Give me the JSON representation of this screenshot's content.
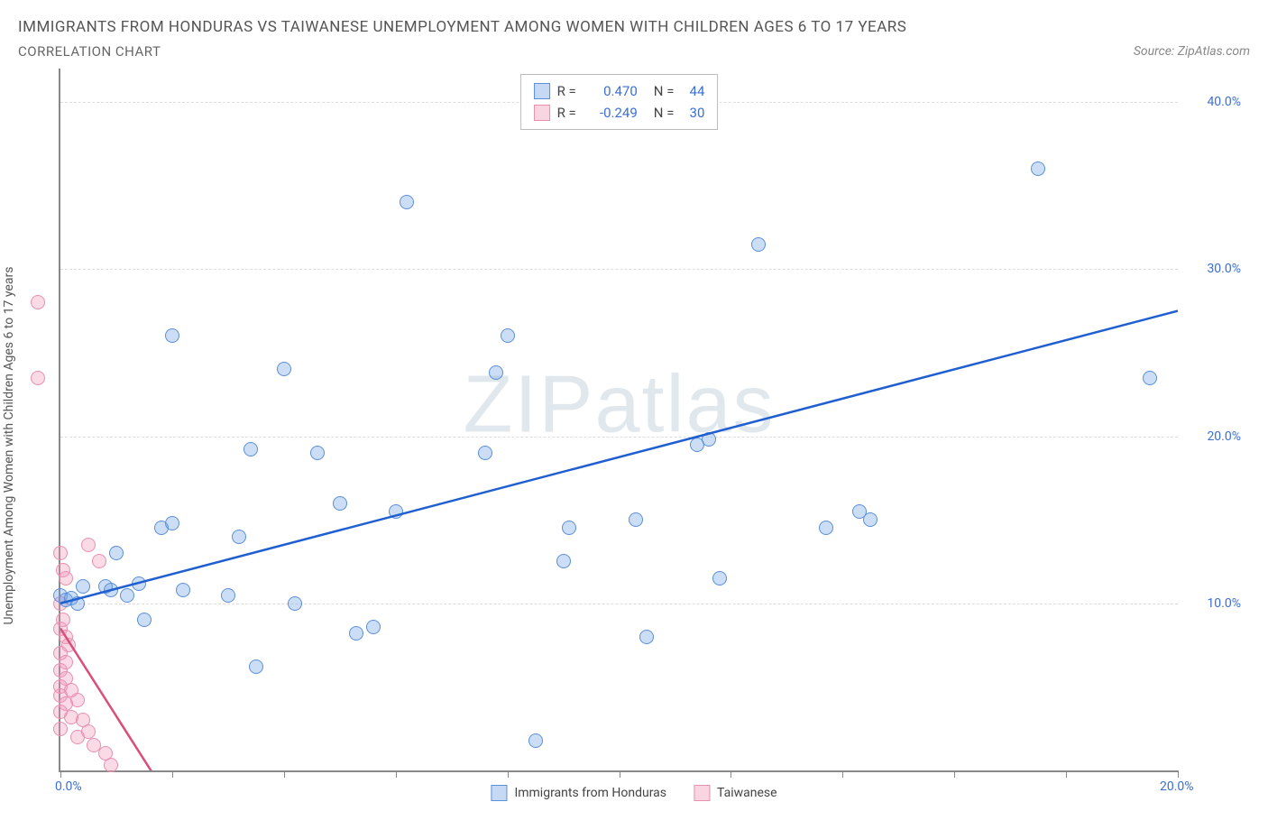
{
  "title": "IMMIGRANTS FROM HONDURAS VS TAIWANESE UNEMPLOYMENT AMONG WOMEN WITH CHILDREN AGES 6 TO 17 YEARS",
  "subtitle": "CORRELATION CHART",
  "source": "Source: ZipAtlas.com",
  "y_axis_label": "Unemployment Among Women with Children Ages 6 to 17 years",
  "watermark_a": "ZIP",
  "watermark_b": "atlas",
  "legend_top": {
    "series": [
      {
        "swatch": "blue",
        "r_label": "R =",
        "r": "0.470",
        "n_label": "N =",
        "n": "44"
      },
      {
        "swatch": "pink",
        "r_label": "R =",
        "r": "-0.249",
        "n_label": "N =",
        "n": "30"
      }
    ]
  },
  "legend_bottom": [
    {
      "swatch": "blue",
      "label": "Immigrants from Honduras"
    },
    {
      "swatch": "pink",
      "label": "Taiwanese"
    }
  ],
  "chart": {
    "type": "scatter",
    "xlim": [
      0,
      20
    ],
    "ylim": [
      0,
      42
    ],
    "x_ticks_pct": [
      0,
      10,
      20,
      30,
      40,
      50,
      60,
      70,
      80,
      90,
      100
    ],
    "y_gridlines": [
      10,
      20,
      30,
      40
    ],
    "y_tick_labels": [
      "10.0%",
      "20.0%",
      "30.0%",
      "40.0%"
    ],
    "x_origin_label": "0.0%",
    "x_max_label": "20.0%",
    "background_color": "#ffffff",
    "grid_color": "#dddddd",
    "axis_color": "#888888",
    "series": {
      "blue": {
        "color_fill": "rgba(110,160,230,0.35)",
        "color_stroke": "#5b8fd9",
        "marker_size": 16,
        "trend": {
          "x1": 0,
          "y1": 10.0,
          "x2": 20,
          "y2": 27.5,
          "stroke": "#1f5fd0",
          "width": 2.5
        },
        "points": [
          [
            0.0,
            10.5
          ],
          [
            0.1,
            10.2
          ],
          [
            0.2,
            10.3
          ],
          [
            0.3,
            10.0
          ],
          [
            0.4,
            11.0
          ],
          [
            0.8,
            11.0
          ],
          [
            0.9,
            10.8
          ],
          [
            1.0,
            13.0
          ],
          [
            1.2,
            10.5
          ],
          [
            1.5,
            9.0
          ],
          [
            1.4,
            11.2
          ],
          [
            1.8,
            14.5
          ],
          [
            2.0,
            14.8
          ],
          [
            2.2,
            10.8
          ],
          [
            2.0,
            26.0
          ],
          [
            3.0,
            10.5
          ],
          [
            3.2,
            14.0
          ],
          [
            3.4,
            19.2
          ],
          [
            3.5,
            6.2
          ],
          [
            4.0,
            24.0
          ],
          [
            4.2,
            10.0
          ],
          [
            4.6,
            19.0
          ],
          [
            5.0,
            16.0
          ],
          [
            5.3,
            8.2
          ],
          [
            5.6,
            8.6
          ],
          [
            6.0,
            15.5
          ],
          [
            6.2,
            34.0
          ],
          [
            7.6,
            19.0
          ],
          [
            7.8,
            23.8
          ],
          [
            8.0,
            26.0
          ],
          [
            8.5,
            1.8
          ],
          [
            9.0,
            12.5
          ],
          [
            9.1,
            14.5
          ],
          [
            10.3,
            15.0
          ],
          [
            10.5,
            8.0
          ],
          [
            11.4,
            19.5
          ],
          [
            11.6,
            19.8
          ],
          [
            11.8,
            11.5
          ],
          [
            12.5,
            31.5
          ],
          [
            13.7,
            14.5
          ],
          [
            14.3,
            15.5
          ],
          [
            14.5,
            15.0
          ],
          [
            17.5,
            36.0
          ],
          [
            19.5,
            23.5
          ]
        ]
      },
      "pink": {
        "color_fill": "rgba(240,150,180,0.35)",
        "color_stroke": "#e88fb0",
        "marker_size": 16,
        "trend": {
          "x1": 0,
          "y1": 8.5,
          "x2": 2.0,
          "y2": -2.0,
          "stroke": "#d94f7a",
          "width": 2.5
        },
        "points": [
          [
            -0.4,
            28.0
          ],
          [
            -0.4,
            23.5
          ],
          [
            0.0,
            13.0
          ],
          [
            0.05,
            12.0
          ],
          [
            0.1,
            11.5
          ],
          [
            0.0,
            10.0
          ],
          [
            0.05,
            9.0
          ],
          [
            0.0,
            8.5
          ],
          [
            0.1,
            8.0
          ],
          [
            0.15,
            7.5
          ],
          [
            0.0,
            7.0
          ],
          [
            0.1,
            6.5
          ],
          [
            0.0,
            6.0
          ],
          [
            0.1,
            5.5
          ],
          [
            0.0,
            5.0
          ],
          [
            0.2,
            4.8
          ],
          [
            0.0,
            4.5
          ],
          [
            0.3,
            4.2
          ],
          [
            0.1,
            4.0
          ],
          [
            0.0,
            3.5
          ],
          [
            0.2,
            3.2
          ],
          [
            0.4,
            3.0
          ],
          [
            0.0,
            2.5
          ],
          [
            0.5,
            2.3
          ],
          [
            0.3,
            2.0
          ],
          [
            0.6,
            1.5
          ],
          [
            0.8,
            1.0
          ],
          [
            0.9,
            0.3
          ],
          [
            0.5,
            13.5
          ],
          [
            0.7,
            12.5
          ]
        ]
      }
    }
  }
}
